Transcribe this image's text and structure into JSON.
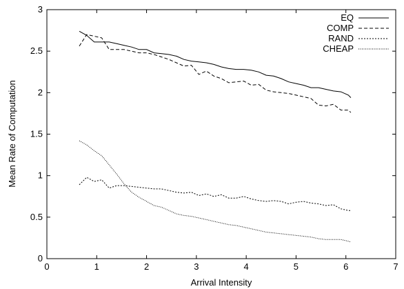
{
  "chart_data": {
    "type": "line",
    "xlabel": "Arrival Intensity",
    "ylabel": "Mean Rate of Computation",
    "xlim": [
      0,
      7
    ],
    "ylim": [
      0,
      3
    ],
    "x_ticks": [
      "0",
      "1",
      "2",
      "3",
      "4",
      "5",
      "6",
      "7"
    ],
    "y_ticks": [
      "0",
      "0.5",
      "1",
      "1.5",
      "2",
      "2.5",
      "3"
    ],
    "grid": false,
    "legend_position": "top-right",
    "series": [
      {
        "name": "EQ",
        "dash": "solid",
        "points": [
          [
            0.65,
            2.74
          ],
          [
            0.8,
            2.69
          ],
          [
            0.95,
            2.61
          ],
          [
            1.1,
            2.61
          ],
          [
            1.25,
            2.61
          ],
          [
            1.4,
            2.59
          ],
          [
            1.55,
            2.57
          ],
          [
            1.7,
            2.55
          ],
          [
            1.85,
            2.52
          ],
          [
            2.0,
            2.52
          ],
          [
            2.15,
            2.48
          ],
          [
            2.3,
            2.47
          ],
          [
            2.45,
            2.46
          ],
          [
            2.6,
            2.44
          ],
          [
            2.75,
            2.4
          ],
          [
            2.9,
            2.38
          ],
          [
            3.05,
            2.37
          ],
          [
            3.2,
            2.36
          ],
          [
            3.35,
            2.34
          ],
          [
            3.5,
            2.31
          ],
          [
            3.65,
            2.29
          ],
          [
            3.8,
            2.28
          ],
          [
            3.95,
            2.28
          ],
          [
            4.1,
            2.27
          ],
          [
            4.25,
            2.25
          ],
          [
            4.4,
            2.21
          ],
          [
            4.55,
            2.2
          ],
          [
            4.7,
            2.17
          ],
          [
            4.85,
            2.13
          ],
          [
            5.0,
            2.11
          ],
          [
            5.15,
            2.09
          ],
          [
            5.3,
            2.06
          ],
          [
            5.45,
            2.06
          ],
          [
            5.6,
            2.04
          ],
          [
            5.75,
            2.02
          ],
          [
            5.9,
            2.01
          ],
          [
            6.05,
            1.97
          ],
          [
            6.1,
            1.94
          ]
        ]
      },
      {
        "name": "COMP",
        "dash": "dashed",
        "points": [
          [
            0.65,
            2.56
          ],
          [
            0.8,
            2.7
          ],
          [
            0.95,
            2.68
          ],
          [
            1.1,
            2.66
          ],
          [
            1.25,
            2.52
          ],
          [
            1.4,
            2.52
          ],
          [
            1.55,
            2.52
          ],
          [
            1.7,
            2.5
          ],
          [
            1.85,
            2.48
          ],
          [
            2.0,
            2.48
          ],
          [
            2.15,
            2.46
          ],
          [
            2.3,
            2.43
          ],
          [
            2.45,
            2.4
          ],
          [
            2.6,
            2.36
          ],
          [
            2.75,
            2.32
          ],
          [
            2.9,
            2.33
          ],
          [
            3.05,
            2.22
          ],
          [
            3.2,
            2.26
          ],
          [
            3.35,
            2.2
          ],
          [
            3.5,
            2.17
          ],
          [
            3.65,
            2.12
          ],
          [
            3.8,
            2.13
          ],
          [
            3.95,
            2.14
          ],
          [
            4.1,
            2.09
          ],
          [
            4.25,
            2.1
          ],
          [
            4.4,
            2.03
          ],
          [
            4.55,
            2.01
          ],
          [
            4.7,
            2.0
          ],
          [
            4.85,
            1.99
          ],
          [
            5.0,
            1.97
          ],
          [
            5.15,
            1.95
          ],
          [
            5.3,
            1.93
          ],
          [
            5.45,
            1.85
          ],
          [
            5.6,
            1.84
          ],
          [
            5.75,
            1.86
          ],
          [
            5.9,
            1.79
          ],
          [
            6.05,
            1.79
          ],
          [
            6.1,
            1.76
          ]
        ]
      },
      {
        "name": "RAND",
        "dash": "dotted",
        "points": [
          [
            0.65,
            0.89
          ],
          [
            0.8,
            0.98
          ],
          [
            0.95,
            0.93
          ],
          [
            1.1,
            0.95
          ],
          [
            1.25,
            0.85
          ],
          [
            1.4,
            0.88
          ],
          [
            1.55,
            0.88
          ],
          [
            1.7,
            0.87
          ],
          [
            1.85,
            0.86
          ],
          [
            2.0,
            0.85
          ],
          [
            2.15,
            0.84
          ],
          [
            2.3,
            0.84
          ],
          [
            2.45,
            0.82
          ],
          [
            2.6,
            0.8
          ],
          [
            2.75,
            0.79
          ],
          [
            2.9,
            0.8
          ],
          [
            3.05,
            0.76
          ],
          [
            3.2,
            0.78
          ],
          [
            3.35,
            0.75
          ],
          [
            3.5,
            0.77
          ],
          [
            3.65,
            0.73
          ],
          [
            3.8,
            0.73
          ],
          [
            3.95,
            0.75
          ],
          [
            4.1,
            0.72
          ],
          [
            4.25,
            0.7
          ],
          [
            4.4,
            0.69
          ],
          [
            4.55,
            0.7
          ],
          [
            4.7,
            0.69
          ],
          [
            4.85,
            0.66
          ],
          [
            5.0,
            0.68
          ],
          [
            5.15,
            0.69
          ],
          [
            5.3,
            0.67
          ],
          [
            5.45,
            0.66
          ],
          [
            5.6,
            0.64
          ],
          [
            5.75,
            0.65
          ],
          [
            5.9,
            0.6
          ],
          [
            6.05,
            0.58
          ],
          [
            6.1,
            0.58
          ]
        ]
      },
      {
        "name": "CHEAP",
        "dash": "fine-dotted",
        "points": [
          [
            0.65,
            1.42
          ],
          [
            0.8,
            1.37
          ],
          [
            0.95,
            1.3
          ],
          [
            1.1,
            1.24
          ],
          [
            1.25,
            1.13
          ],
          [
            1.4,
            1.02
          ],
          [
            1.55,
            0.9
          ],
          [
            1.7,
            0.8
          ],
          [
            1.85,
            0.74
          ],
          [
            2.0,
            0.69
          ],
          [
            2.15,
            0.64
          ],
          [
            2.3,
            0.62
          ],
          [
            2.45,
            0.58
          ],
          [
            2.6,
            0.54
          ],
          [
            2.75,
            0.52
          ],
          [
            2.9,
            0.51
          ],
          [
            3.05,
            0.49
          ],
          [
            3.2,
            0.47
          ],
          [
            3.35,
            0.45
          ],
          [
            3.5,
            0.43
          ],
          [
            3.65,
            0.41
          ],
          [
            3.8,
            0.4
          ],
          [
            3.95,
            0.38
          ],
          [
            4.1,
            0.36
          ],
          [
            4.25,
            0.34
          ],
          [
            4.4,
            0.32
          ],
          [
            4.55,
            0.31
          ],
          [
            4.7,
            0.3
          ],
          [
            4.85,
            0.29
          ],
          [
            5.0,
            0.28
          ],
          [
            5.15,
            0.27
          ],
          [
            5.3,
            0.26
          ],
          [
            5.45,
            0.24
          ],
          [
            5.6,
            0.23
          ],
          [
            5.75,
            0.23
          ],
          [
            5.9,
            0.23
          ],
          [
            6.05,
            0.21
          ],
          [
            6.1,
            0.2
          ]
        ]
      }
    ]
  }
}
